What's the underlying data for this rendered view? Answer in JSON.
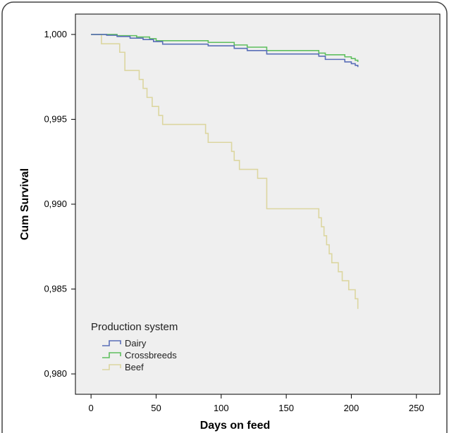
{
  "chart_data": {
    "type": "line",
    "xlabel": "Days on feed",
    "ylabel": "Cum Survival",
    "xlim": [
      0,
      250
    ],
    "ylim": [
      0.98,
      1.0
    ],
    "x_ticks": [
      0,
      50,
      100,
      150,
      200,
      250
    ],
    "x_tick_labels": [
      "0",
      "50",
      "100",
      "150",
      "200",
      "250"
    ],
    "y_ticks": [
      0.98,
      0.985,
      0.99,
      0.995,
      1.0
    ],
    "y_tick_labels": [
      "0,980",
      "0,985",
      "0,990",
      "0,995",
      "1,000"
    ],
    "grid": false,
    "background_color": "#efefef",
    "legend": {
      "title": "Production system",
      "placement": "bottom-left",
      "entries": [
        "Dairy",
        "Crossbreeds",
        "Beef"
      ]
    },
    "series": [
      {
        "name": "Dairy",
        "color": "#5a6fb8",
        "step": true,
        "x": [
          0,
          12,
          20,
          30,
          40,
          48,
          55,
          90,
          110,
          120,
          135,
          175,
          180,
          195,
          200,
          203,
          205
        ],
        "y": [
          1.0,
          0.99995,
          0.99988,
          0.99978,
          0.9997,
          0.99958,
          0.99943,
          0.99933,
          0.99918,
          0.99905,
          0.99885,
          0.99872,
          0.99853,
          0.99838,
          0.99828,
          0.99818,
          0.99808
        ]
      },
      {
        "name": "Crossbreeds",
        "color": "#5fbf5f",
        "step": true,
        "x": [
          0,
          20,
          35,
          45,
          50,
          90,
          110,
          120,
          135,
          175,
          180,
          195,
          200,
          203,
          205
        ],
        "y": [
          1.0,
          0.99993,
          0.99985,
          0.99975,
          0.99963,
          0.99953,
          0.99938,
          0.99925,
          0.99905,
          0.9989,
          0.9988,
          0.99868,
          0.99858,
          0.99848,
          0.99838
        ]
      },
      {
        "name": "Beef",
        "color": "#dcd6a0",
        "step": true,
        "x": [
          0,
          8,
          22,
          26,
          37,
          40,
          43,
          47,
          52,
          55,
          88,
          90,
          108,
          110,
          114,
          128,
          135,
          175,
          177,
          179,
          181,
          183,
          185,
          190,
          193,
          198,
          203,
          205
        ],
        "y": [
          1.0,
          0.99945,
          0.99895,
          0.99788,
          0.99735,
          0.99682,
          0.99629,
          0.99576,
          0.99523,
          0.9947,
          0.99417,
          0.99364,
          0.99311,
          0.99258,
          0.99205,
          0.99152,
          0.98973,
          0.9892,
          0.98867,
          0.98814,
          0.98761,
          0.98708,
          0.98655,
          0.98602,
          0.98549,
          0.98496,
          0.98443,
          0.98383
        ]
      }
    ]
  }
}
